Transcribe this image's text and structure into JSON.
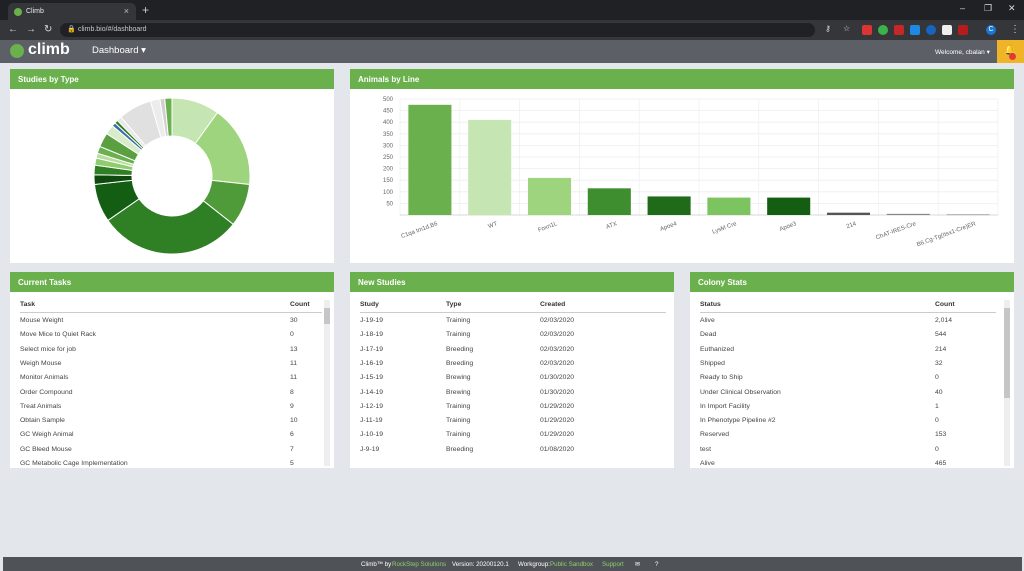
{
  "browser": {
    "tab_title": "Climb",
    "url": "climb.bio/#/dashboard",
    "user_initial": "C"
  },
  "app": {
    "logo": "climb",
    "nav": "Dashboard",
    "welcome": "Welcome, cbalan"
  },
  "colors": {
    "accent": "#6ab04c",
    "header": "#5c6066",
    "bell": "#f0b429"
  },
  "studies_by_type": {
    "title": "Studies by Type"
  },
  "chart_data": [
    {
      "type": "pie",
      "title": "Studies by Type",
      "slices": [
        {
          "value": 10,
          "color": "#c5e6b3"
        },
        {
          "value": 17,
          "color": "#9fd47f"
        },
        {
          "value": 9,
          "color": "#4f9b3a"
        },
        {
          "value": 30,
          "color": "#2f7f24"
        },
        {
          "value": 8,
          "color": "#145e14"
        },
        {
          "value": 2,
          "color": "#0e4a0e"
        },
        {
          "value": 2,
          "color": "#2f7f24"
        },
        {
          "value": 1.5,
          "color": "#8fcc6e"
        },
        {
          "value": 1,
          "color": "#b7dea0"
        },
        {
          "value": 1.5,
          "color": "#6ab04c"
        },
        {
          "value": 3,
          "color": "#5aa040"
        },
        {
          "value": 2,
          "color": "#d9ecc9"
        },
        {
          "value": 0.8,
          "color": "#3a6ea5"
        },
        {
          "value": 0.7,
          "color": "#2f7f24"
        },
        {
          "value": 1,
          "color": "#e8e8e8"
        },
        {
          "value": 7,
          "color": "#e0e0e0"
        },
        {
          "value": 2,
          "color": "#ececec"
        },
        {
          "value": 1,
          "color": "#d0d0d0"
        },
        {
          "value": 1.5,
          "color": "#6ab04c"
        }
      ]
    },
    {
      "type": "bar",
      "title": "Animals by Line",
      "categories": [
        "C1qa tm1d.B6",
        "WT",
        "Foxn1L",
        "ATX",
        "Apoe4",
        "LysM Cre",
        "Apoe3",
        "214",
        "ChAT-IRES-Cre",
        "B6.Cg-Tg(Itsx1-Cre)ER"
      ],
      "values": [
        475,
        410,
        160,
        115,
        80,
        75,
        75,
        10,
        5,
        3
      ],
      "colors": [
        "#6ab04c",
        "#c5e6b3",
        "#9fd47f",
        "#3e8e30",
        "#1f6b1a",
        "#7cc45f",
        "#145e14",
        "#555",
        "#888",
        "#999"
      ],
      "yticks": [
        "500",
        "450",
        "400",
        "350",
        "300",
        "250",
        "200",
        "150",
        "100",
        "50"
      ],
      "ylim": [
        0,
        500
      ]
    }
  ],
  "animals_by_line": {
    "title": "Animals by Line"
  },
  "tasks": {
    "title": "Current Tasks",
    "headers": [
      "Task",
      "Count"
    ],
    "rows": [
      [
        "Mouse Weight",
        "30"
      ],
      [
        "Move Mice to Quiet Rack",
        "0"
      ],
      [
        "Select mice for job",
        "13"
      ],
      [
        "Weigh Mouse",
        "11"
      ],
      [
        "Monitor Animals",
        "11"
      ],
      [
        "Order Compound",
        "8"
      ],
      [
        "Treat Animals",
        "9"
      ],
      [
        "Obtain Sample",
        "10"
      ],
      [
        "GC Weigh Animal",
        "6"
      ],
      [
        "GC Bleed Mouse",
        "7"
      ],
      [
        "GC Metabolic Cage Implementation",
        "5"
      ]
    ]
  },
  "studies": {
    "title": "New Studies",
    "headers": [
      "Study",
      "Type",
      "Created"
    ],
    "rows": [
      [
        "J-19-19",
        "Training",
        "02/03/2020"
      ],
      [
        "J-18-19",
        "Training",
        "02/03/2020"
      ],
      [
        "J-17-19",
        "Breeding",
        "02/03/2020"
      ],
      [
        "J-16-19",
        "Breeding",
        "02/03/2020"
      ],
      [
        "J-15-19",
        "Brewing",
        "01/30/2020"
      ],
      [
        "J-14-19",
        "Brewing",
        "01/30/2020"
      ],
      [
        "J-12-19",
        "Training",
        "01/29/2020"
      ],
      [
        "J-11-19",
        "Training",
        "01/29/2020"
      ],
      [
        "J-10-19",
        "Training",
        "01/29/2020"
      ],
      [
        "J-9-19",
        "Breeding",
        "01/08/2020"
      ]
    ]
  },
  "colony": {
    "title": "Colony Stats",
    "headers": [
      "Status",
      "Count"
    ],
    "rows": [
      [
        "Alive",
        "2,014"
      ],
      [
        "Dead",
        "544"
      ],
      [
        "Euthanized",
        "214"
      ],
      [
        "Shipped",
        "32"
      ],
      [
        "Ready to Ship",
        "0"
      ],
      [
        "Under Clinical Observation",
        "40"
      ],
      [
        "In Import Facility",
        "1"
      ],
      [
        "In Phenotype Pipeline #2",
        "0"
      ],
      [
        "Reserved",
        "153"
      ],
      [
        "test",
        "0"
      ],
      [
        "Alive",
        "465"
      ]
    ]
  },
  "footer": {
    "brand": "Climb™ by",
    "brand_link": "RockStep Solutions",
    "version": "Version: 20200120.1",
    "workgroup_label": "Workgroup:",
    "workgroup": "Public Sandbox",
    "support": "Support"
  }
}
